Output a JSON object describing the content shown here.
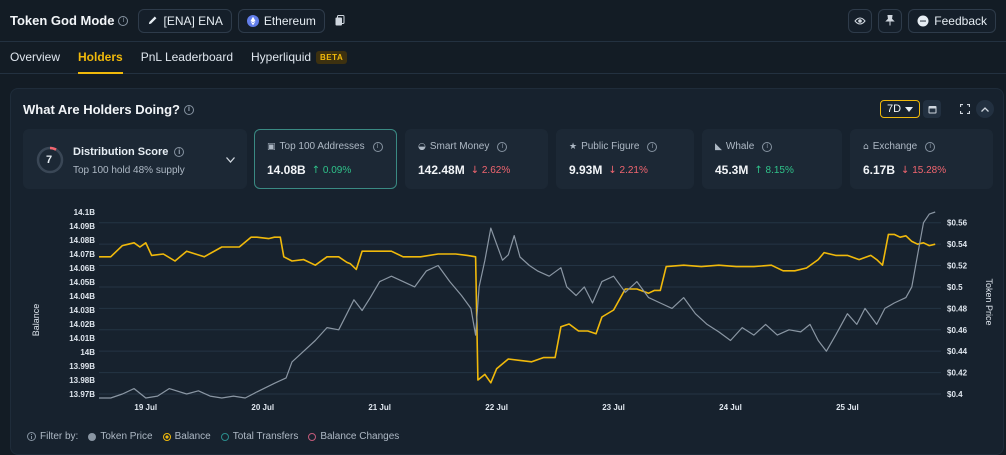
{
  "header": {
    "title": "Token God Mode",
    "token_label": "[ENA] ENA",
    "chain_label": "Ethereum",
    "feedback_label": "Feedback"
  },
  "tabs": [
    {
      "label": "Overview",
      "active": false
    },
    {
      "label": "Holders",
      "active": true
    },
    {
      "label": "PnL Leaderboard",
      "active": false
    },
    {
      "label": "Hyperliquid",
      "active": false,
      "badge": "BETA"
    }
  ],
  "panel": {
    "title": "What Are Holders Doing?",
    "range": "7D"
  },
  "distribution": {
    "score": "7",
    "score_fraction": 0.7,
    "title": "Distribution Score",
    "subtitle": "Top 100 hold 48% supply"
  },
  "cards": [
    {
      "label": "Top 100 Addresses",
      "icon": "address-book-icon",
      "value": "14.08B",
      "change": "0.09%",
      "direction": "up",
      "active": true
    },
    {
      "label": "Smart Money",
      "icon": "brain-icon",
      "value": "142.48M",
      "change": "2.62%",
      "direction": "down",
      "active": false
    },
    {
      "label": "Public Figure",
      "icon": "star-badge-icon",
      "value": "9.93M",
      "change": "2.21%",
      "direction": "down",
      "active": false
    },
    {
      "label": "Whale",
      "icon": "whale-icon",
      "value": "45.3M",
      "change": "8.15%",
      "direction": "up",
      "active": false
    },
    {
      "label": "Exchange",
      "icon": "bank-icon",
      "value": "6.17B",
      "change": "15.28%",
      "direction": "down",
      "active": false
    }
  ],
  "colors": {
    "accent": "#f0b90b",
    "balance": "#f0b90b",
    "token_price": "#8a96a3",
    "up": "#2fc28a",
    "down": "#f0656f",
    "active_card_border": "#3a8a83"
  },
  "legend": {
    "prefix": "Filter by:",
    "items": [
      {
        "label": "Token Price",
        "color": "#8a96a3",
        "style": "filled"
      },
      {
        "label": "Balance",
        "color": "#f0b90b",
        "style": "ring"
      },
      {
        "label": "Total Transfers",
        "color": "#2a8c8c",
        "style": "ring"
      },
      {
        "label": "Balance Changes",
        "color": "#c25a7a",
        "style": "ring"
      }
    ]
  },
  "chart_data": {
    "type": "line",
    "ylabel": "Balance",
    "y2label": "Token Price",
    "ylim": [
      13.97,
      14.1
    ],
    "y2lim": [
      0.4,
      0.57
    ],
    "yticks": [
      "14.1B",
      "14.09B",
      "14.08B",
      "14.07B",
      "14.06B",
      "14.05B",
      "14.04B",
      "14.03B",
      "14.02B",
      "14.01B",
      "14B",
      "13.99B",
      "13.98B",
      "13.97B"
    ],
    "y2ticks": [
      "$0.56",
      "$0.54",
      "$0.52",
      "$0.5",
      "$0.48",
      "$0.46",
      "$0.44",
      "$0.42",
      "$0.4"
    ],
    "y2tick_values": [
      0.56,
      0.54,
      0.52,
      0.5,
      0.48,
      0.46,
      0.44,
      0.42,
      0.4
    ],
    "xlim": [
      18.6,
      25.8
    ],
    "xticks": [
      {
        "label": "19 Jul",
        "value": 19
      },
      {
        "label": "20 Jul",
        "value": 20
      },
      {
        "label": "21 Jul",
        "value": 21
      },
      {
        "label": "22 Jul",
        "value": 22
      },
      {
        "label": "23 Jul",
        "value": 23
      },
      {
        "label": "24 Jul",
        "value": 24
      },
      {
        "label": "25 Jul",
        "value": 25
      }
    ],
    "grid": true,
    "series": [
      {
        "name": "Balance",
        "axis": "left",
        "color": "#f0b90b",
        "points": [
          [
            18.6,
            14.068
          ],
          [
            18.7,
            14.068
          ],
          [
            18.8,
            14.076
          ],
          [
            18.9,
            14.078
          ],
          [
            18.95,
            14.075
          ],
          [
            19.0,
            14.078
          ],
          [
            19.05,
            14.069
          ],
          [
            19.15,
            14.07
          ],
          [
            19.25,
            14.065
          ],
          [
            19.35,
            14.072
          ],
          [
            19.5,
            14.068
          ],
          [
            19.65,
            14.075
          ],
          [
            19.8,
            14.075
          ],
          [
            19.9,
            14.082
          ],
          [
            19.95,
            14.082
          ],
          [
            20.05,
            14.081
          ],
          [
            20.1,
            14.082
          ],
          [
            20.15,
            14.082
          ],
          [
            20.18,
            14.068
          ],
          [
            20.25,
            14.065
          ],
          [
            20.35,
            14.066
          ],
          [
            20.45,
            14.062
          ],
          [
            20.55,
            14.068
          ],
          [
            20.65,
            14.068
          ],
          [
            20.72,
            14.064
          ],
          [
            20.75,
            14.063
          ],
          [
            20.8,
            14.059
          ],
          [
            20.85,
            14.072
          ],
          [
            20.95,
            14.072
          ],
          [
            21.1,
            14.072
          ],
          [
            21.2,
            14.068
          ],
          [
            21.35,
            14.068
          ],
          [
            21.5,
            14.07
          ],
          [
            21.65,
            14.07
          ],
          [
            21.75,
            14.069
          ],
          [
            21.82,
            14.068
          ],
          [
            21.84,
            13.98
          ],
          [
            21.9,
            13.984
          ],
          [
            21.95,
            13.978
          ],
          [
            22.0,
            13.988
          ],
          [
            22.1,
            13.995
          ],
          [
            22.2,
            13.994
          ],
          [
            22.3,
            13.993
          ],
          [
            22.4,
            13.996
          ],
          [
            22.5,
            13.996
          ],
          [
            22.55,
            14.018
          ],
          [
            22.62,
            14.02
          ],
          [
            22.7,
            14.015
          ],
          [
            22.78,
            14.015
          ],
          [
            22.85,
            14.013
          ],
          [
            22.9,
            14.025
          ],
          [
            23.0,
            14.03
          ],
          [
            23.1,
            14.045
          ],
          [
            23.2,
            14.045
          ],
          [
            23.3,
            14.042
          ],
          [
            23.35,
            14.044
          ],
          [
            23.4,
            14.044
          ],
          [
            23.45,
            14.061
          ],
          [
            23.6,
            14.062
          ],
          [
            23.75,
            14.061
          ],
          [
            23.9,
            14.062
          ],
          [
            24.05,
            14.061
          ],
          [
            24.2,
            14.061
          ],
          [
            24.35,
            14.062
          ],
          [
            24.45,
            14.058
          ],
          [
            24.55,
            14.058
          ],
          [
            24.65,
            14.06
          ],
          [
            24.75,
            14.066
          ],
          [
            24.8,
            14.071
          ],
          [
            24.9,
            14.069
          ],
          [
            25.0,
            14.069
          ],
          [
            25.1,
            14.066
          ],
          [
            25.2,
            14.069
          ],
          [
            25.25,
            14.066
          ],
          [
            25.3,
            14.062
          ],
          [
            25.35,
            14.084
          ],
          [
            25.4,
            14.084
          ],
          [
            25.45,
            14.082
          ],
          [
            25.5,
            14.083
          ],
          [
            25.55,
            14.079
          ],
          [
            25.6,
            14.077
          ],
          [
            25.65,
            14.078
          ],
          [
            25.7,
            14.076
          ],
          [
            25.75,
            14.077
          ]
        ]
      },
      {
        "name": "Token Price",
        "axis": "right",
        "color": "#8a96a3",
        "points": [
          [
            18.6,
            0.39
          ],
          [
            18.7,
            0.395
          ],
          [
            18.8,
            0.4
          ],
          [
            18.9,
            0.405
          ],
          [
            19.0,
            0.395
          ],
          [
            19.1,
            0.398
          ],
          [
            19.2,
            0.405
          ],
          [
            19.35,
            0.4
          ],
          [
            19.45,
            0.403
          ],
          [
            19.55,
            0.398
          ],
          [
            19.65,
            0.39
          ],
          [
            19.75,
            0.398
          ],
          [
            19.85,
            0.395
          ],
          [
            19.95,
            0.402
          ],
          [
            20.1,
            0.41
          ],
          [
            20.2,
            0.415
          ],
          [
            20.25,
            0.43
          ],
          [
            20.35,
            0.44
          ],
          [
            20.45,
            0.45
          ],
          [
            20.55,
            0.462
          ],
          [
            20.65,
            0.46
          ],
          [
            20.72,
            0.475
          ],
          [
            20.78,
            0.488
          ],
          [
            20.85,
            0.478
          ],
          [
            20.92,
            0.49
          ],
          [
            21.0,
            0.505
          ],
          [
            21.1,
            0.51
          ],
          [
            21.2,
            0.505
          ],
          [
            21.3,
            0.5
          ],
          [
            21.4,
            0.515
          ],
          [
            21.5,
            0.52
          ],
          [
            21.6,
            0.505
          ],
          [
            21.7,
            0.492
          ],
          [
            21.78,
            0.48
          ],
          [
            21.82,
            0.455
          ],
          [
            21.85,
            0.5
          ],
          [
            21.9,
            0.525
          ],
          [
            21.95,
            0.555
          ],
          [
            22.0,
            0.54
          ],
          [
            22.05,
            0.525
          ],
          [
            22.1,
            0.53
          ],
          [
            22.15,
            0.548
          ],
          [
            22.2,
            0.528
          ],
          [
            22.28,
            0.52
          ],
          [
            22.35,
            0.515
          ],
          [
            22.45,
            0.51
          ],
          [
            22.55,
            0.518
          ],
          [
            22.6,
            0.5
          ],
          [
            22.68,
            0.492
          ],
          [
            22.75,
            0.5
          ],
          [
            22.82,
            0.485
          ],
          [
            22.9,
            0.505
          ],
          [
            23.0,
            0.51
          ],
          [
            23.1,
            0.495
          ],
          [
            23.2,
            0.505
          ],
          [
            23.3,
            0.49
          ],
          [
            23.4,
            0.485
          ],
          [
            23.5,
            0.48
          ],
          [
            23.6,
            0.49
          ],
          [
            23.7,
            0.475
          ],
          [
            23.8,
            0.465
          ],
          [
            23.9,
            0.458
          ],
          [
            24.0,
            0.45
          ],
          [
            24.1,
            0.462
          ],
          [
            24.2,
            0.455
          ],
          [
            24.3,
            0.465
          ],
          [
            24.4,
            0.455
          ],
          [
            24.5,
            0.46
          ],
          [
            24.6,
            0.458
          ],
          [
            24.68,
            0.465
          ],
          [
            24.75,
            0.45
          ],
          [
            24.82,
            0.44
          ],
          [
            24.9,
            0.455
          ],
          [
            25.0,
            0.475
          ],
          [
            25.08,
            0.465
          ],
          [
            25.15,
            0.48
          ],
          [
            25.25,
            0.465
          ],
          [
            25.32,
            0.48
          ],
          [
            25.4,
            0.485
          ],
          [
            25.5,
            0.49
          ],
          [
            25.55,
            0.5
          ],
          [
            25.6,
            0.53
          ],
          [
            25.65,
            0.56
          ],
          [
            25.7,
            0.568
          ],
          [
            25.75,
            0.57
          ]
        ]
      }
    ]
  }
}
